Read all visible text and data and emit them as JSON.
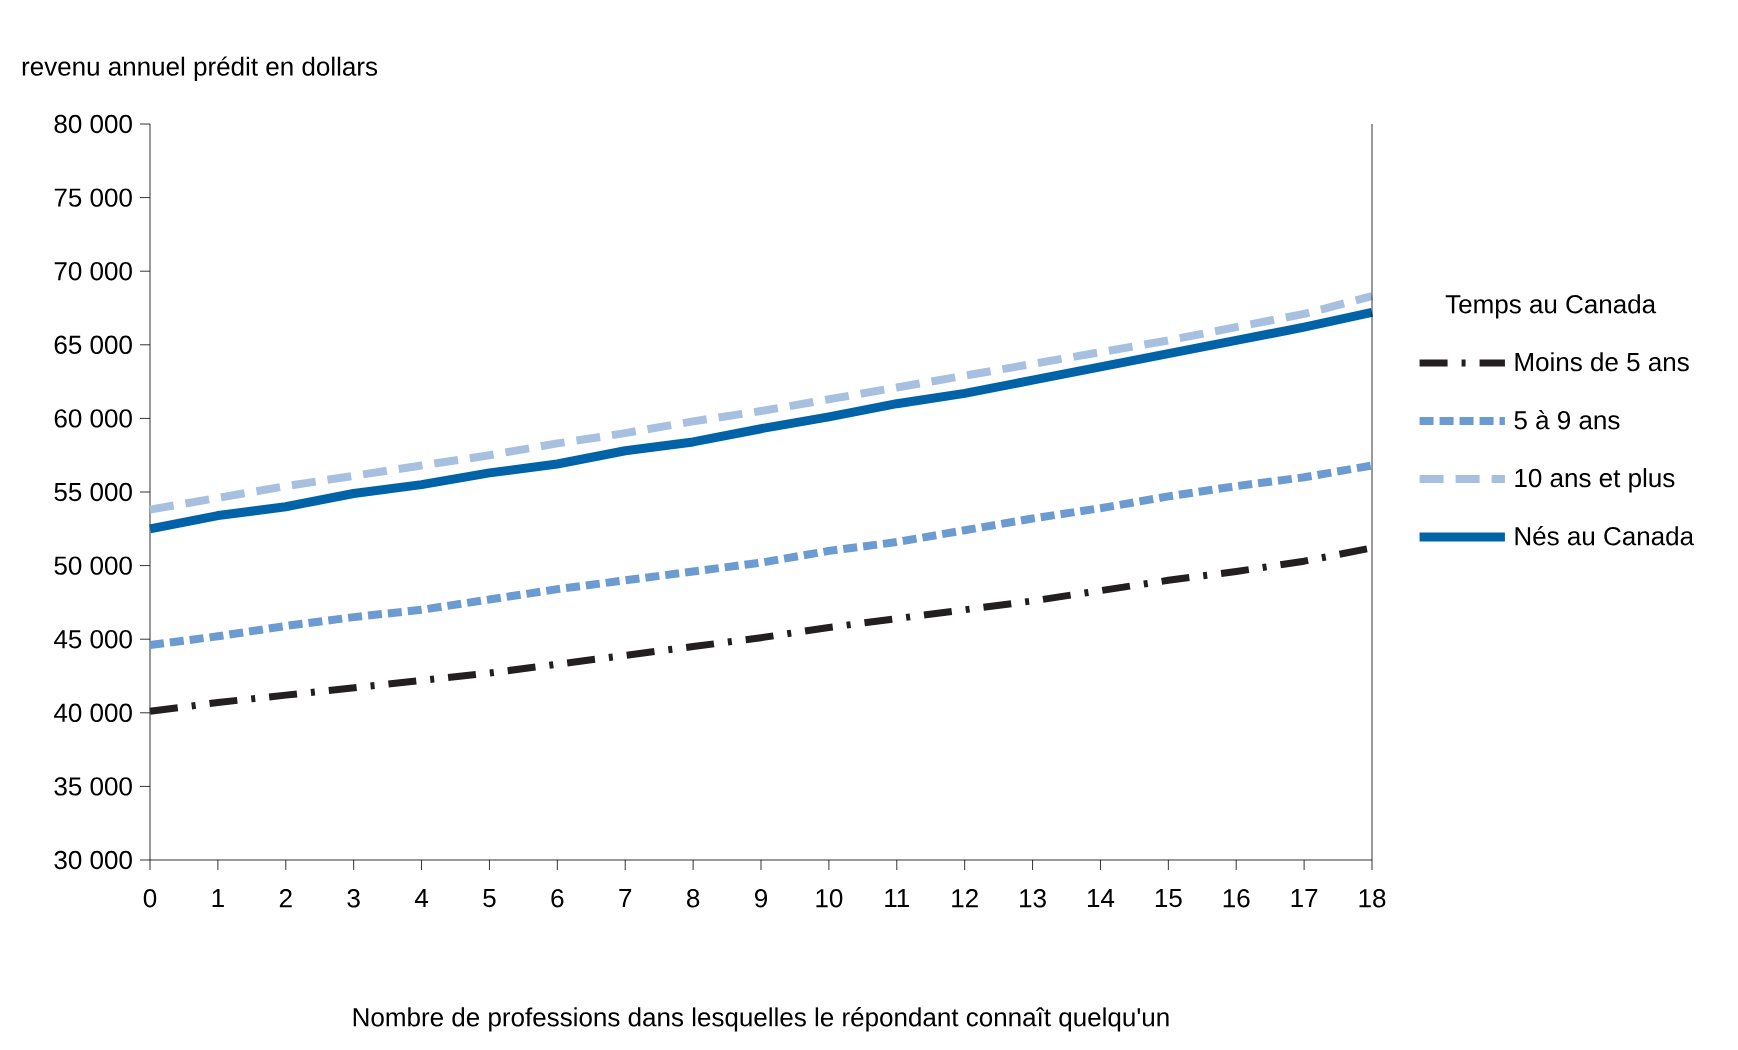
{
  "chart_data": {
    "type": "line",
    "ylabel": "revenu annuel prédit en dollars",
    "xlabel": "Nombre de professions dans lesquelles le répondant connaît quelqu'un",
    "legend_title": "Temps au Canada",
    "legend": "right",
    "x": [
      0,
      1,
      2,
      3,
      4,
      5,
      6,
      7,
      8,
      9,
      10,
      11,
      12,
      13,
      14,
      15,
      16,
      17,
      18
    ],
    "xlim": [
      0,
      18
    ],
    "xticks": [
      0,
      1,
      2,
      3,
      4,
      5,
      6,
      7,
      8,
      9,
      10,
      11,
      12,
      13,
      14,
      15,
      16,
      17,
      18
    ],
    "ylim": [
      30000,
      80000
    ],
    "yticks": [
      {
        "value": 30000,
        "label": "30 000"
      },
      {
        "value": 35000,
        "label": "35 000"
      },
      {
        "value": 40000,
        "label": "40 000"
      },
      {
        "value": 45000,
        "label": "45 000"
      },
      {
        "value": 50000,
        "label": "50 000"
      },
      {
        "value": 55000,
        "label": "55 000"
      },
      {
        "value": 60000,
        "label": "60 000"
      },
      {
        "value": 65000,
        "label": "65 000"
      },
      {
        "value": 70000,
        "label": "70 000"
      },
      {
        "value": 75000,
        "label": "75 000"
      },
      {
        "value": 80000,
        "label": "80 000"
      }
    ],
    "series": [
      {
        "name": "Moins de 5 ans",
        "color": "#231f20",
        "line_style": "dashdot",
        "values": [
          40100,
          40700,
          41200,
          41700,
          42200,
          42700,
          43300,
          43900,
          44500,
          45100,
          45800,
          46400,
          47000,
          47600,
          48300,
          49000,
          49600,
          50300,
          51200
        ]
      },
      {
        "name": "5 à 9 ans",
        "color": "#6b9bd1",
        "line_style": "dotted",
        "values": [
          44600,
          45200,
          45900,
          46500,
          47000,
          47700,
          48400,
          49000,
          49600,
          50200,
          51000,
          51600,
          52400,
          53200,
          53900,
          54700,
          55400,
          56000,
          56800
        ]
      },
      {
        "name": "10 ans et plus",
        "color": "#a7c0e0",
        "line_style": "dashed",
        "values": [
          53800,
          54600,
          55400,
          56100,
          56800,
          57500,
          58300,
          59000,
          59800,
          60500,
          61300,
          62100,
          62900,
          63700,
          64500,
          65300,
          66200,
          67100,
          68300
        ]
      },
      {
        "name": "Nés au Canada",
        "color": "#0063a8",
        "line_style": "solid",
        "values": [
          52500,
          53400,
          54000,
          54900,
          55500,
          56300,
          56900,
          57800,
          58400,
          59300,
          60100,
          61000,
          61700,
          62600,
          63500,
          64400,
          65300,
          66200,
          67200
        ]
      }
    ]
  }
}
